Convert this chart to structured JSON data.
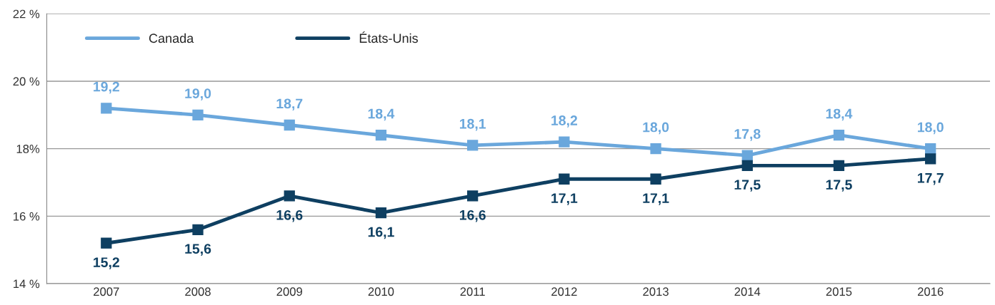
{
  "chart_data": {
    "type": "line",
    "categories": [
      "2007",
      "2008",
      "2009",
      "2010",
      "2011",
      "2012",
      "2013",
      "2014",
      "2015",
      "2016"
    ],
    "series": [
      {
        "name": "Canada",
        "color": "#6aa7dc",
        "values": [
          19.2,
          19.0,
          18.7,
          18.4,
          18.1,
          18.2,
          18.0,
          17.8,
          18.4,
          18.0
        ],
        "value_labels": [
          "19,2",
          "19,0",
          "18,7",
          "18,4",
          "18,1",
          "18,2",
          "18,0",
          "17,8",
          "18,4",
          "18,0"
        ]
      },
      {
        "name": "États-Unis",
        "color": "#0e3f61",
        "values": [
          15.2,
          15.6,
          16.6,
          16.1,
          16.6,
          17.1,
          17.1,
          17.5,
          17.5,
          17.7
        ],
        "value_labels": [
          "15,2",
          "15,6",
          "16,6",
          "16,1",
          "16,6",
          "17,1",
          "17,1",
          "17,5",
          "17,5",
          "17,7"
        ]
      }
    ],
    "ylim": [
      14,
      22
    ],
    "yticks": [
      {
        "value": 14,
        "label": "14 %"
      },
      {
        "value": 16,
        "label": "16 %"
      },
      {
        "value": 18,
        "label": "18%"
      },
      {
        "value": 20,
        "label": "20 %"
      },
      {
        "value": 22,
        "label": "22 %"
      }
    ],
    "grid": "y",
    "legend": "top left",
    "marker": "square",
    "line_style": "solid"
  }
}
